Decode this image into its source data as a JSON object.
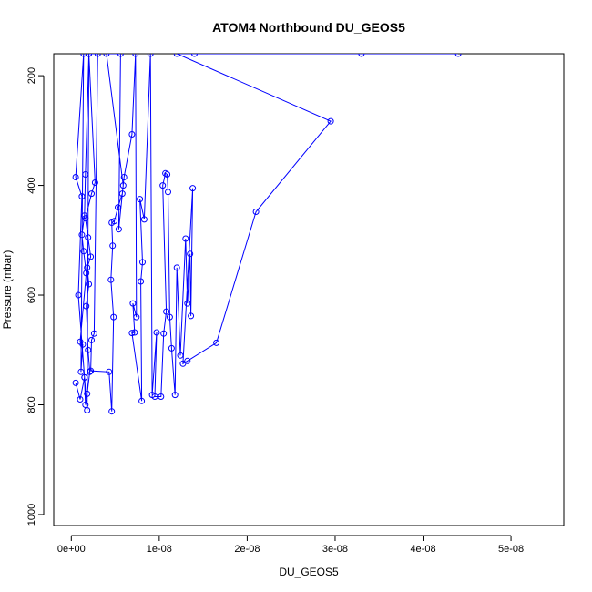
{
  "chart_data": {
    "type": "line",
    "title": "ATOM4 Northbound DU_GEOS5",
    "xlabel": "DU_GEOS5",
    "ylabel": "Pressure (mbar)",
    "xlim": [
      -2e-09,
      5.6e-08
    ],
    "ylim": [
      1020,
      160
    ],
    "y_reversed": true,
    "grid": false,
    "x_ticks": [
      0,
      1e-08,
      2e-08,
      3e-08,
      4e-08,
      5e-08
    ],
    "x_tick_labels": [
      "0e+00",
      "1e-08",
      "2e-08",
      "3e-08",
      "4e-08",
      "5e-08"
    ],
    "y_ticks": [
      200,
      400,
      600,
      800,
      1000
    ],
    "y_tick_labels": [
      "200",
      "400",
      "600",
      "800",
      "1000"
    ],
    "series": [
      {
        "color": "#0000ff",
        "marker": "open-circle",
        "points": [
          [
            5e-10,
            760
          ],
          [
            1e-09,
            790
          ],
          [
            1.5e-09,
            750
          ],
          [
            8e-10,
            600
          ],
          [
            1.2e-09,
            420
          ],
          [
            5e-10,
            385
          ],
          [
            1.4e-09,
            160
          ],
          [
            1.1e-09,
            740
          ],
          [
            1.3e-09,
            690
          ],
          [
            1e-09,
            685
          ],
          [
            1.7e-09,
            560
          ],
          [
            1.4e-09,
            520
          ],
          [
            1.2e-09,
            490
          ],
          [
            1.5e-09,
            455
          ],
          [
            1.6e-09,
            380
          ],
          [
            2e-09,
            160
          ],
          [
            1.8e-09,
            810
          ],
          [
            1.5e-09,
            750
          ],
          [
            1.6e-09,
            800
          ],
          [
            1.8e-09,
            780
          ],
          [
            2.1e-09,
            740
          ],
          [
            1.9e-09,
            700
          ],
          [
            1.7e-09,
            620
          ],
          [
            2e-09,
            580
          ],
          [
            1.8e-09,
            550
          ],
          [
            2.2e-09,
            530
          ],
          [
            1.9e-09,
            495
          ],
          [
            1.6e-09,
            460
          ],
          [
            2.3e-09,
            415
          ],
          [
            2.7e-09,
            395
          ],
          [
            2e-09,
            160
          ],
          [
            3e-09,
            160
          ],
          [
            2.6e-09,
            670
          ],
          [
            2.3e-09,
            682
          ],
          [
            2.2e-09,
            738
          ],
          [
            4.3e-09,
            740
          ],
          [
            4.6e-09,
            812
          ],
          [
            4.8e-09,
            640
          ],
          [
            4.5e-09,
            572
          ],
          [
            4.7e-09,
            510
          ],
          [
            4.6e-09,
            468
          ],
          [
            4.9e-09,
            465
          ],
          [
            5.3e-09,
            440
          ],
          [
            5.8e-09,
            415
          ],
          [
            5.9e-09,
            400
          ],
          [
            4e-09,
            160
          ],
          [
            5.6e-09,
            160
          ],
          [
            5.4e-09,
            480
          ],
          [
            6e-09,
            385
          ],
          [
            6.9e-09,
            307
          ],
          [
            7.3e-09,
            160
          ],
          [
            7.4e-09,
            640
          ],
          [
            7e-09,
            615
          ],
          [
            7.2e-09,
            668
          ],
          [
            6.9e-09,
            669
          ],
          [
            8e-09,
            793
          ],
          [
            7.9e-09,
            575
          ],
          [
            8.1e-09,
            540
          ],
          [
            7.8e-09,
            425
          ],
          [
            8.3e-09,
            462
          ],
          [
            9e-09,
            160
          ],
          [
            9.2e-09,
            782
          ],
          [
            9.7e-09,
            668
          ],
          [
            9.5e-09,
            785
          ],
          [
            1.02e-08,
            785
          ],
          [
            1.05e-08,
            670
          ],
          [
            1.08e-08,
            630
          ],
          [
            1.04e-08,
            400
          ],
          [
            1.07e-08,
            378
          ],
          [
            1.09e-08,
            380
          ],
          [
            1.1e-08,
            412
          ],
          [
            1.12e-08,
            640
          ],
          [
            1.14e-08,
            697
          ],
          [
            1.18e-08,
            782
          ],
          [
            1.2e-08,
            550
          ],
          [
            1.24e-08,
            710
          ],
          [
            1.3e-08,
            497
          ],
          [
            1.32e-08,
            615
          ],
          [
            1.35e-08,
            525
          ],
          [
            1.36e-08,
            638
          ],
          [
            1.38e-08,
            405
          ],
          [
            1.27e-08,
            725
          ],
          [
            1.32e-08,
            720
          ],
          [
            1.65e-08,
            687
          ],
          [
            2.1e-08,
            448
          ],
          [
            2.95e-08,
            283
          ],
          [
            1.2e-08,
            160
          ],
          [
            1.4e-08,
            160
          ],
          [
            3.3e-08,
            160
          ],
          [
            4.4e-08,
            160
          ]
        ]
      }
    ]
  }
}
